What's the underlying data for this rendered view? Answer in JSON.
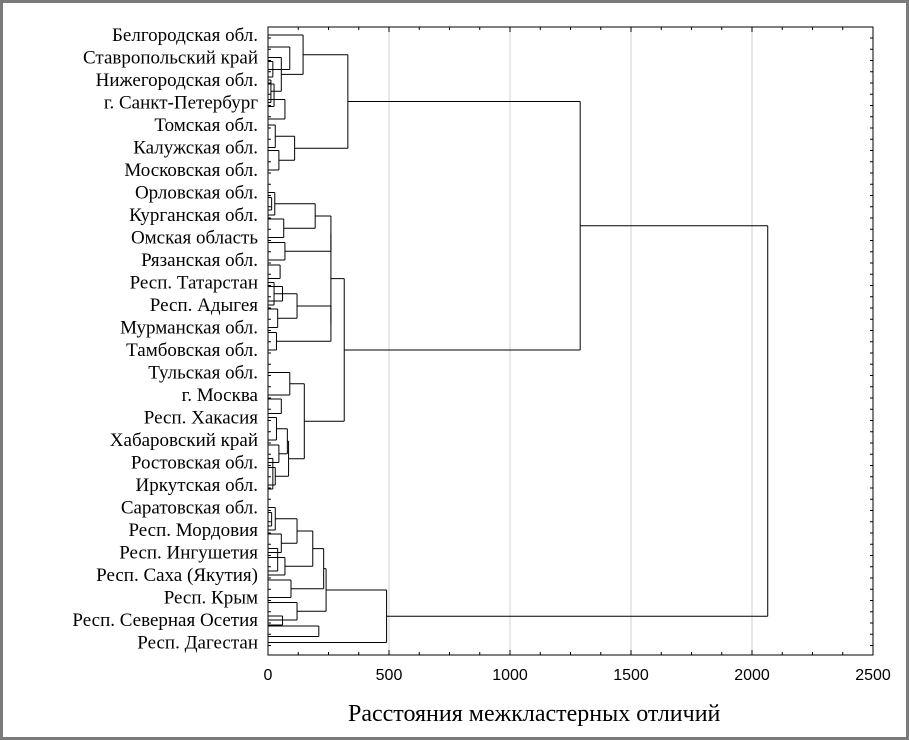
{
  "chart_data": {
    "type": "dendrogram",
    "orientation": "horizontal",
    "xlabel": "Расстояния межкластерных отличий",
    "xlim": [
      0,
      2500
    ],
    "xticks": [
      0,
      500,
      1000,
      1500,
      2000,
      2500
    ],
    "grid": "vertical",
    "leaves": [
      "Белгородская обл.",
      "Ставропольский край",
      "Нижегородская обл.",
      "г. Санкт-Петербург",
      "Томская обл.",
      "Калужская обл.",
      "Московская обл.",
      "Орловская обл.",
      "Курганская обл.",
      "Омская область",
      "Рязанская обл.",
      "Респ. Татарстан",
      "Респ. Адыгея",
      "Мурманская обл.",
      "Тамбовская обл.",
      "Тульская обл.",
      "г. Москва",
      "Респ. Хакасия",
      "Хабаровский край",
      "Ростовская обл.",
      "Иркутская обл.",
      "Саратовская обл.",
      "Респ. Мордовия",
      "Респ. Ингушетия",
      "Респ. Саха (Якутия)",
      "Респ. Крым",
      "Респ. Северная Осетия",
      "Респ. Дагестан"
    ],
    "major_merges": [
      {
        "groups": [
          "Белгородская обл. … Московская обл.",
          "Орловская обл. … Иркутская обл."
        ],
        "height": 1290
      },
      {
        "groups": [
          "Белгородская обл. … Иркутская обл.",
          "Саратовская обл. … Респ. Дагестан"
        ],
        "height": 2065
      },
      {
        "groups": [
          "Саратовская обл. … Респ. Северная Осетия",
          "Респ. Дагестан"
        ],
        "height": 490
      },
      {
        "groups": [
          "Белгородская обл. … г. Санкт-Петербург",
          "Томская обл. … Московская обл."
        ],
        "height": 330
      },
      {
        "groups": [
          "Орловская обл. … Тамбовская обл.",
          "Тульская обл. … Иркутская обл."
        ],
        "height": 315
      }
    ]
  }
}
